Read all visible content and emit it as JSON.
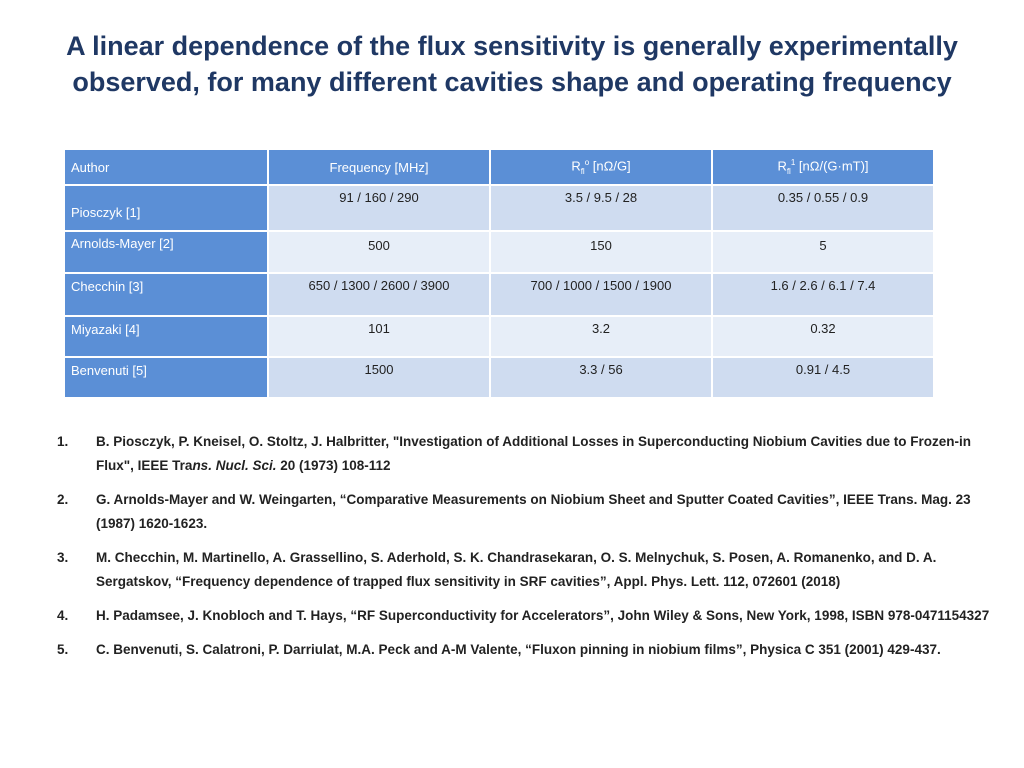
{
  "title": "A linear dependence of the flux sensitivity is generally experimentally observed, for many different cavities shape and operating frequency",
  "table": {
    "headers": {
      "author": "Author",
      "frequency": "Frequency [MHz]",
      "rfl0_prefix": "R",
      "rfl0_sub": "fl",
      "rfl0_sup": "o",
      "rfl0_unit": " [nΩ/G]",
      "rfl1_prefix": "R",
      "rfl1_sub": "fl",
      "rfl1_sup": "1",
      "rfl1_unit": " [nΩ/(G·mT)]"
    },
    "rows": [
      {
        "author": "Piosczyk [1]",
        "frequency": "91 / 160 / 290",
        "rfl0": "3.5 / 9.5 / 28",
        "rfl1": "0.35 / 0.55 / 0.9"
      },
      {
        "author": "Arnolds-Mayer [2]",
        "frequency": "500",
        "rfl0": "150",
        "rfl1": "5"
      },
      {
        "author": "Checchin [3]",
        "frequency": "650 / 1300 / 2600 / 3900",
        "rfl0": "700 / 1000 / 1500 / 1900",
        "rfl1": "1.6 / 2.6 / 6.1 / 7.4"
      },
      {
        "author": "Miyazaki [4]",
        "frequency": "101",
        "rfl0": "3.2",
        "rfl1": "0.32"
      },
      {
        "author": "Benvenuti [5]",
        "frequency": "1500",
        "rfl0": "3.3 / 56",
        "rfl1": "0.91 / 4.5"
      }
    ]
  },
  "references": [
    {
      "num": "1.",
      "text_a": "B. Piosczyk, P. Kneisel, O. Stoltz, J. Halbritter, \"Investigation of Additional Losses in Superconducting Niobium Cavities due to Frozen-in Flux\", IEEE Tra",
      "text_italic": "ns. Nucl. Sci.",
      "text_b": " 20 (1973) 108-112"
    },
    {
      "num": "2.",
      "text_a": "G. Arnolds-Mayer and W. Weingarten, “Comparative Measurements on Niobium Sheet and Sputter Coated Cavities”, IEEE Trans. Mag. 23 (1987) 1620-1623.",
      "text_italic": "",
      "text_b": ""
    },
    {
      "num": "3.",
      "text_a": "M. Checchin, M. Martinello, A. Grassellino, S. Aderhold, S. K. Chandrasekaran, O. S. Melnychuk, S. Posen, A. Romanenko, and D. A. Sergatskov, “Frequency dependence of trapped flux sensitivity in SRF cavities”, Appl. Phys. Lett. 112, 072601 (2018)",
      "text_italic": "",
      "text_b": ""
    },
    {
      "num": "4.",
      "text_a": "H. Padamsee, J. Knobloch and T. Hays, “RF Superconductivity for Accelerators”, John Wiley & Sons, New York, 1998, ISBN 978-0471154327",
      "text_italic": "",
      "text_b": ""
    },
    {
      "num": "5.",
      "text_a": "C. Benvenuti, S. Calatroni, P. Darriulat, M.A. Peck and A-M Valente, “Fluxon pinning in niobium films”, Physica C 351 (2001) 429-437.",
      "text_italic": "",
      "text_b": ""
    }
  ]
}
